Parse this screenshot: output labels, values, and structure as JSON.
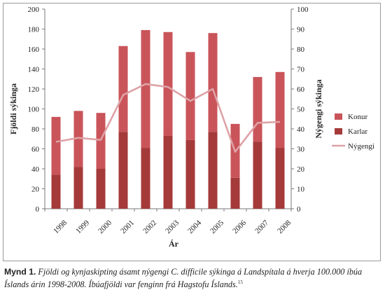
{
  "chart_data": {
    "type": "bar",
    "categories": [
      "1998",
      "1999",
      "2000",
      "2001",
      "2002",
      "2003",
      "2004",
      "2005",
      "2006",
      "2007",
      "2008"
    ],
    "series": [
      {
        "name": "Karlar",
        "type": "bar",
        "stack": "main",
        "axis": "left",
        "color": "#a53a3a",
        "values": [
          34,
          42,
          40,
          77,
          61,
          73,
          69,
          77,
          31,
          67,
          61
        ]
      },
      {
        "name": "Konur",
        "type": "bar",
        "stack": "main",
        "axis": "left",
        "color": "#c9545a",
        "values": [
          58,
          56,
          56,
          86,
          118,
          104,
          88,
          99,
          54,
          65,
          76
        ]
      },
      {
        "name": "Nýgengi",
        "type": "line",
        "axis": "right",
        "color": "#dea2a6",
        "values": [
          33.5,
          35.5,
          34.5,
          57,
          62.5,
          61,
          54,
          60,
          28.5,
          43,
          43.5
        ]
      }
    ],
    "xlabel": "Ár",
    "ylabel": "Fjöldi sýkinga",
    "y2label": "Nýgengi sýkinga",
    "ylim": [
      0,
      200
    ],
    "y2lim": [
      0,
      100
    ],
    "yticks": [
      "0",
      "20",
      "40",
      "60",
      "80",
      "100",
      "120",
      "140",
      "160",
      "180",
      "200"
    ],
    "y2ticks": [
      "0",
      "10",
      "20",
      "30",
      "40",
      "50",
      "60",
      "70",
      "80",
      "90",
      "100"
    ],
    "grid": false,
    "legend_position": "right",
    "legend": [
      "Konur",
      "Karlar",
      "Nýgengi"
    ]
  },
  "caption": {
    "label": "Mynd 1.",
    "text": "Fjöldi og kynjaskipting ásamt nýgengi C. difficile sýkinga á Landspítala á hverja 100.000 íbúa Íslands árin 1998-2008. Íbúafjöldi var fenginn frá Hagstofu Íslands.",
    "footnote": "15"
  }
}
